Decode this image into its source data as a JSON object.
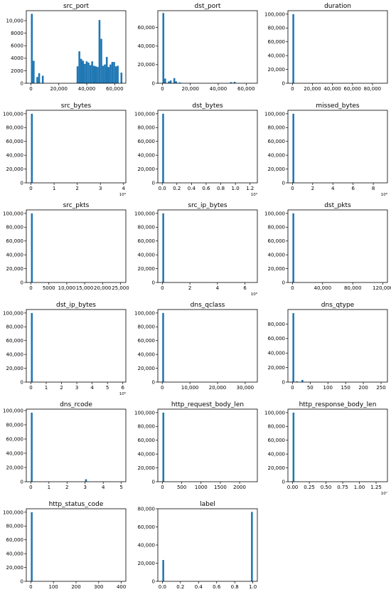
{
  "colors": {
    "bar": "#1f77b4"
  },
  "chart_data": [
    {
      "type": "bar",
      "title": "src_port",
      "xlim": [
        -3300,
        68000
      ],
      "ylim": [
        0,
        11600
      ],
      "xticks": [
        0,
        20000,
        40000,
        60000
      ],
      "xtick_labels": [
        "0",
        "20,000",
        "40,000",
        "60,000"
      ],
      "yticks": [
        0,
        2000,
        4000,
        6000,
        8000,
        10000
      ],
      "ytick_labels": [
        "0",
        "2000",
        "4000",
        "6000",
        "8000",
        "10,000"
      ],
      "bins": [
        {
          "x0": 0,
          "x1": 1310,
          "v": 11100
        },
        {
          "x0": 1310,
          "x1": 2620,
          "v": 3600
        },
        {
          "x0": 2620,
          "x1": 3930,
          "v": 0
        },
        {
          "x0": 3930,
          "x1": 5240,
          "v": 1000
        },
        {
          "x0": 5240,
          "x1": 6550,
          "v": 1600
        },
        {
          "x0": 6550,
          "x1": 7860,
          "v": 0
        },
        {
          "x0": 7860,
          "x1": 9170,
          "v": 1200
        },
        {
          "x0": 32750,
          "x1": 34060,
          "v": 2700
        },
        {
          "x0": 34060,
          "x1": 35370,
          "v": 5100
        },
        {
          "x0": 35370,
          "x1": 36680,
          "v": 3900
        },
        {
          "x0": 36680,
          "x1": 37990,
          "v": 3600
        },
        {
          "x0": 37990,
          "x1": 39300,
          "v": 3100
        },
        {
          "x0": 39300,
          "x1": 40610,
          "v": 3500
        },
        {
          "x0": 40610,
          "x1": 41920,
          "v": 3300
        },
        {
          "x0": 41920,
          "x1": 43230,
          "v": 2900
        },
        {
          "x0": 43230,
          "x1": 44540,
          "v": 3500
        },
        {
          "x0": 44540,
          "x1": 45850,
          "v": 2800
        },
        {
          "x0": 45850,
          "x1": 47160,
          "v": 2700
        },
        {
          "x0": 47160,
          "x1": 48470,
          "v": 2600
        },
        {
          "x0": 48470,
          "x1": 49780,
          "v": 10100
        },
        {
          "x0": 49780,
          "x1": 51090,
          "v": 7100
        },
        {
          "x0": 51090,
          "x1": 52400,
          "v": 2800
        },
        {
          "x0": 52400,
          "x1": 53710,
          "v": 3000
        },
        {
          "x0": 53710,
          "x1": 55020,
          "v": 4200
        },
        {
          "x0": 55020,
          "x1": 56330,
          "v": 2600
        },
        {
          "x0": 56330,
          "x1": 57640,
          "v": 3000
        },
        {
          "x0": 57640,
          "x1": 58950,
          "v": 3400
        },
        {
          "x0": 58950,
          "x1": 60260,
          "v": 3400
        },
        {
          "x0": 60260,
          "x1": 61570,
          "v": 2700
        },
        {
          "x0": 61570,
          "x1": 62880,
          "v": 2800
        },
        {
          "x0": 64190,
          "x1": 65500,
          "v": 1700
        }
      ]
    },
    {
      "type": "bar",
      "title": "dst_port",
      "xlim": [
        -3300,
        68000
      ],
      "ylim": [
        0,
        78000
      ],
      "xticks": [
        0,
        20000,
        40000,
        60000
      ],
      "xtick_labels": [
        "0",
        "20,000",
        "40,000",
        "60,000"
      ],
      "yticks": [
        0,
        20000,
        40000,
        60000
      ],
      "ytick_labels": [
        "0",
        "20,000",
        "40,000",
        "60,000"
      ],
      "bins": [
        {
          "x0": 0,
          "x1": 1310,
          "v": 75500
        },
        {
          "x0": 1310,
          "x1": 2620,
          "v": 5000
        },
        {
          "x0": 2620,
          "x1": 3930,
          "v": 0
        },
        {
          "x0": 3930,
          "x1": 5240,
          "v": 2000
        },
        {
          "x0": 5240,
          "x1": 6550,
          "v": 3000
        },
        {
          "x0": 6550,
          "x1": 7860,
          "v": 0
        },
        {
          "x0": 7860,
          "x1": 9170,
          "v": 5500
        },
        {
          "x0": 9170,
          "x1": 10480,
          "v": 2000
        },
        {
          "x0": 10480,
          "x1": 11790,
          "v": 0
        },
        {
          "x0": 11790,
          "x1": 13100,
          "v": 800
        },
        {
          "x0": 13100,
          "x1": 14410,
          "v": 300
        },
        {
          "x0": 18340,
          "x1": 19650,
          "v": 200
        },
        {
          "x0": 48470,
          "x1": 49780,
          "v": 1200
        },
        {
          "x0": 49780,
          "x1": 51090,
          "v": 300
        },
        {
          "x0": 51090,
          "x1": 52400,
          "v": 1500
        }
      ]
    },
    {
      "type": "bar",
      "title": "duration",
      "xlim": [
        -4500,
        95000
      ],
      "ylim": [
        0,
        105000
      ],
      "xticks": [
        0,
        20000,
        40000,
        60000,
        80000
      ],
      "xtick_labels": [
        "0",
        "20,000",
        "40,000",
        "60,000",
        "80,000"
      ],
      "yticks": [
        0,
        20000,
        40000,
        60000,
        80000,
        100000
      ],
      "ytick_labels": [
        "0",
        "20,000",
        "40,000",
        "60,000",
        "80,000",
        "100,000"
      ],
      "bins": [
        {
          "x0": 0,
          "x1": 1800,
          "v": 100000
        }
      ]
    },
    {
      "type": "bar",
      "title": "src_bytes",
      "xlim": [
        -0.2,
        4.1
      ],
      "ylim": [
        0,
        105000
      ],
      "xticks": [
        0,
        1,
        2,
        3,
        4
      ],
      "xtick_labels": [
        "0",
        "1",
        "2",
        "3",
        "4"
      ],
      "xmultiplier": "10⁹",
      "yticks": [
        0,
        20000,
        40000,
        60000,
        80000,
        100000
      ],
      "ytick_labels": [
        "0",
        "20,000",
        "40,000",
        "60,000",
        "80,000",
        "100,000"
      ],
      "bins": [
        {
          "x0": 0,
          "x1": 0.08,
          "v": 100000
        }
      ]
    },
    {
      "type": "bar",
      "title": "dst_bytes",
      "xlim": [
        -0.06,
        1.3
      ],
      "ylim": [
        0,
        105000
      ],
      "xticks": [
        0,
        0.2,
        0.4,
        0.6,
        0.8,
        1.0,
        1.2
      ],
      "xtick_labels": [
        "0.0",
        "0.2",
        "0.4",
        "0.6",
        "0.8",
        "1.0",
        "1.2"
      ],
      "xmultiplier": "10⁹",
      "yticks": [
        0,
        20000,
        40000,
        60000,
        80000,
        100000
      ],
      "ytick_labels": [
        "0",
        "20,000",
        "40,000",
        "60,000",
        "80,000",
        "100,000"
      ],
      "bins": [
        {
          "x0": 0,
          "x1": 0.025,
          "v": 100000
        }
      ]
    },
    {
      "type": "bar",
      "title": "missed_bytes",
      "xlim": [
        -0.45,
        9.4
      ],
      "ylim": [
        0,
        105000
      ],
      "xticks": [
        0,
        2,
        4,
        6,
        8
      ],
      "xtick_labels": [
        "0",
        "2",
        "4",
        "6",
        "8"
      ],
      "xmultiplier": "10⁸",
      "yticks": [
        0,
        20000,
        40000,
        60000,
        80000,
        100000
      ],
      "ytick_labels": [
        "0",
        "20,000",
        "40,000",
        "60,000",
        "80,000",
        "100,000"
      ],
      "bins": [
        {
          "x0": 0,
          "x1": 0.18,
          "v": 100000
        }
      ]
    },
    {
      "type": "bar",
      "title": "src_pkts",
      "xlim": [
        -1300,
        26500
      ],
      "ylim": [
        0,
        105000
      ],
      "xticks": [
        0,
        5000,
        10000,
        15000,
        20000,
        25000
      ],
      "xtick_labels": [
        "0",
        "5000",
        "10,000",
        "15,000",
        "20,000",
        "25,000"
      ],
      "yticks": [
        0,
        20000,
        40000,
        60000,
        80000,
        100000
      ],
      "ytick_labels": [
        "0",
        "20,000",
        "40,000",
        "60,000",
        "80,000",
        "100,000"
      ],
      "bins": [
        {
          "x0": 0,
          "x1": 500,
          "v": 100000
        }
      ]
    },
    {
      "type": "bar",
      "title": "src_ip_bytes",
      "xlim": [
        -0.33,
        6.9
      ],
      "ylim": [
        0,
        105000
      ],
      "xticks": [
        0,
        2,
        4,
        6
      ],
      "xtick_labels": [
        "0",
        "2",
        "4",
        "6"
      ],
      "xmultiplier": "10⁶",
      "yticks": [
        0,
        20000,
        40000,
        60000,
        80000,
        100000
      ],
      "ytick_labels": [
        "0",
        "20,000",
        "40,000",
        "60,000",
        "80,000",
        "100,000"
      ],
      "bins": [
        {
          "x0": 0,
          "x1": 0.13,
          "v": 100000
        }
      ]
    },
    {
      "type": "bar",
      "title": "dst_pkts",
      "xlim": [
        -6000,
        126000
      ],
      "ylim": [
        0,
        105000
      ],
      "xticks": [
        0,
        40000,
        80000,
        120000
      ],
      "xtick_labels": [
        "0",
        "40,000",
        "80,000",
        "120,000"
      ],
      "yticks": [
        0,
        20000,
        40000,
        60000,
        80000,
        100000
      ],
      "ytick_labels": [
        "0",
        "20,000",
        "40,000",
        "60,000",
        "80,000",
        "100,000"
      ],
      "bins": [
        {
          "x0": 0,
          "x1": 2400,
          "v": 100000
        }
      ]
    },
    {
      "type": "bar",
      "title": "dst_ip_bytes",
      "xlim": [
        -0.3,
        6.2
      ],
      "ylim": [
        0,
        105000
      ],
      "xticks": [
        0,
        1,
        2,
        3,
        4,
        5,
        6
      ],
      "xtick_labels": [
        "0",
        "1",
        "2",
        "3",
        "4",
        "5",
        "6"
      ],
      "xmultiplier": "10⁶",
      "yticks": [
        0,
        20000,
        40000,
        60000,
        80000,
        100000
      ],
      "ytick_labels": [
        "0",
        "20,000",
        "40,000",
        "60,000",
        "80,000",
        "100,000"
      ],
      "bins": [
        {
          "x0": 0,
          "x1": 0.12,
          "v": 100000
        }
      ]
    },
    {
      "type": "bar",
      "title": "dns_qclass",
      "xlim": [
        -1600,
        34400
      ],
      "ylim": [
        0,
        105000
      ],
      "xticks": [
        0,
        10000,
        20000,
        30000
      ],
      "xtick_labels": [
        "0",
        "10,000",
        "20,000",
        "30,000"
      ],
      "yticks": [
        0,
        20000,
        40000,
        60000,
        80000,
        100000
      ],
      "ytick_labels": [
        "0",
        "20,000",
        "40,000",
        "60,000",
        "80,000",
        "100,000"
      ],
      "bins": [
        {
          "x0": 0,
          "x1": 655,
          "v": 100000
        }
      ]
    },
    {
      "type": "bar",
      "title": "dns_qtype",
      "xlim": [
        -12.8,
        268
      ],
      "ylim": [
        0,
        100000
      ],
      "xticks": [
        0,
        50,
        100,
        150,
        200,
        250
      ],
      "xtick_labels": [
        "0",
        "50",
        "100",
        "150",
        "200",
        "250"
      ],
      "yticks": [
        0,
        20000,
        40000,
        60000,
        80000
      ],
      "ytick_labels": [
        "0",
        "20,000",
        "40,000",
        "60,000",
        "80,000"
      ],
      "bins": [
        {
          "x0": 0,
          "x1": 5.1,
          "v": 95000
        },
        {
          "x0": 10.2,
          "x1": 15.3,
          "v": 1000
        },
        {
          "x0": 25.5,
          "x1": 30.6,
          "v": 3000
        }
      ]
    },
    {
      "type": "bar",
      "title": "dns_rcode",
      "xlim": [
        -0.25,
        5.25
      ],
      "ylim": [
        0,
        102000
      ],
      "xticks": [
        0,
        1,
        2,
        3,
        4,
        5
      ],
      "xtick_labels": [
        "0",
        "1",
        "2",
        "3",
        "4",
        "5"
      ],
      "yticks": [
        0,
        20000,
        40000,
        60000,
        80000,
        100000
      ],
      "ytick_labels": [
        "0",
        "20,000",
        "40,000",
        "60,000",
        "80,000",
        "100,000"
      ],
      "bins": [
        {
          "x0": 0,
          "x1": 0.1,
          "v": 97000
        },
        {
          "x0": 3.0,
          "x1": 3.1,
          "v": 3500
        }
      ]
    },
    {
      "type": "bar",
      "title": "http_request_body_len",
      "xlim": [
        -120,
        2460
      ],
      "ylim": [
        0,
        105000
      ],
      "xticks": [
        0,
        500,
        1000,
        1500,
        2000
      ],
      "xtick_labels": [
        "0",
        "500",
        "1000",
        "1500",
        "2000"
      ],
      "yticks": [
        0,
        20000,
        40000,
        60000,
        80000,
        100000
      ],
      "ytick_labels": [
        "0",
        "20,000",
        "40,000",
        "60,000",
        "80,000",
        "100,000"
      ],
      "bins": [
        {
          "x0": 0,
          "x1": 47,
          "v": 100000
        }
      ]
    },
    {
      "type": "bar",
      "title": "http_response_body_len",
      "xlim": [
        -0.07,
        1.42
      ],
      "ylim": [
        0,
        105000
      ],
      "xticks": [
        0,
        0.25,
        0.5,
        0.75,
        1.0,
        1.25
      ],
      "xtick_labels": [
        "0.00",
        "0.25",
        "0.50",
        "0.75",
        "1.00",
        "1.25"
      ],
      "xmultiplier": "10⁷",
      "yticks": [
        0,
        20000,
        40000,
        60000,
        80000,
        100000
      ],
      "ytick_labels": [
        "0",
        "20,000",
        "40,000",
        "60,000",
        "80,000",
        "100,000"
      ],
      "bins": [
        {
          "x0": 0,
          "x1": 0.027,
          "v": 100000
        }
      ]
    },
    {
      "type": "bar",
      "title": "http_status_code",
      "xlim": [
        -20,
        420
      ],
      "ylim": [
        0,
        105000
      ],
      "xticks": [
        0,
        100,
        200,
        300,
        400
      ],
      "xtick_labels": [
        "0",
        "100",
        "200",
        "300",
        "400"
      ],
      "yticks": [
        0,
        20000,
        40000,
        60000,
        80000,
        100000
      ],
      "ytick_labels": [
        "0",
        "20,000",
        "40,000",
        "60,000",
        "80,000",
        "100,000"
      ],
      "bins": [
        {
          "x0": 0,
          "x1": 8,
          "v": 100000
        }
      ]
    },
    {
      "type": "bar",
      "title": "label",
      "xlim": [
        -0.05,
        1.05
      ],
      "ylim": [
        0,
        80000
      ],
      "xticks": [
        0,
        0.2,
        0.4,
        0.6,
        0.8,
        1.0
      ],
      "xtick_labels": [
        "0.0",
        "0.2",
        "0.4",
        "0.6",
        "0.8",
        "1.0"
      ],
      "yticks": [
        0,
        20000,
        40000,
        60000,
        80000
      ],
      "ytick_labels": [
        "0",
        "20,000",
        "40,000",
        "60,000",
        "80,000"
      ],
      "bins": [
        {
          "x0": 0,
          "x1": 0.02,
          "v": 23500
        },
        {
          "x0": 0.98,
          "x1": 1.0,
          "v": 76500
        }
      ]
    }
  ]
}
